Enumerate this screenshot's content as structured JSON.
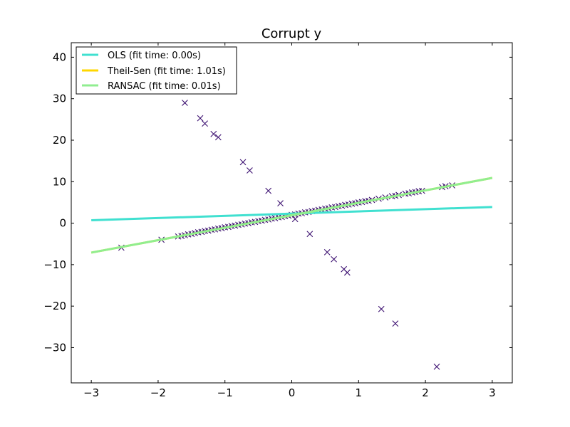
{
  "chart_data": {
    "type": "scatter",
    "title": "Corrupt y",
    "xlabel": "",
    "ylabel": "",
    "xlim": [
      -3.3,
      3.3
    ],
    "ylim": [
      -38.5,
      43.5
    ],
    "x_ticks": [
      -3,
      -2,
      -1,
      0,
      1,
      2,
      3
    ],
    "x_tick_labels": [
      "−3",
      "−2",
      "−1",
      "0",
      "1",
      "2",
      "3"
    ],
    "y_ticks": [
      -30,
      -20,
      -10,
      0,
      10,
      20,
      30,
      40
    ],
    "y_tick_labels": [
      "−30",
      "−20",
      "−10",
      "0",
      "10",
      "20",
      "30",
      "40"
    ],
    "grid": false,
    "legend": {
      "placement": "top-left"
    },
    "scatter": {
      "marker": "x",
      "color": "#3b0f70",
      "points": [
        [
          -2.55,
          -5.9
        ],
        [
          -1.95,
          -4.0
        ],
        [
          -1.7,
          -3.2
        ],
        [
          -1.65,
          -3.1
        ],
        [
          -1.6,
          -2.9
        ],
        [
          -1.55,
          -2.7
        ],
        [
          -1.5,
          -2.6
        ],
        [
          -1.45,
          -2.4
        ],
        [
          -1.4,
          -2.2
        ],
        [
          -1.35,
          -2.1
        ],
        [
          -1.3,
          -1.9
        ],
        [
          -1.25,
          -1.8
        ],
        [
          -1.2,
          -1.6
        ],
        [
          -1.15,
          -1.5
        ],
        [
          -1.1,
          -1.3
        ],
        [
          -1.05,
          -1.2
        ],
        [
          -1.0,
          -1.0
        ],
        [
          -0.95,
          -0.9
        ],
        [
          -0.9,
          -0.7
        ],
        [
          -0.85,
          -0.6
        ],
        [
          -0.8,
          -0.4
        ],
        [
          -0.75,
          -0.3
        ],
        [
          -0.7,
          -0.1
        ],
        [
          -0.65,
          0.0
        ],
        [
          -0.6,
          0.2
        ],
        [
          -0.55,
          0.3
        ],
        [
          -0.5,
          0.5
        ],
        [
          -0.45,
          0.6
        ],
        [
          -0.4,
          0.8
        ],
        [
          -0.35,
          0.9
        ],
        [
          -0.3,
          1.1
        ],
        [
          -0.25,
          1.2
        ],
        [
          -0.2,
          1.4
        ],
        [
          -0.15,
          1.5
        ],
        [
          -0.1,
          1.7
        ],
        [
          -0.05,
          1.8
        ],
        [
          0.0,
          2.0
        ],
        [
          0.05,
          2.1
        ],
        [
          0.1,
          2.3
        ],
        [
          0.15,
          2.4
        ],
        [
          0.2,
          2.6
        ],
        [
          0.25,
          2.7
        ],
        [
          0.3,
          2.9
        ],
        [
          0.35,
          3.0
        ],
        [
          0.4,
          3.2
        ],
        [
          0.45,
          3.3
        ],
        [
          0.5,
          3.5
        ],
        [
          0.55,
          3.6
        ],
        [
          0.6,
          3.8
        ],
        [
          0.65,
          3.9
        ],
        [
          0.7,
          4.1
        ],
        [
          0.75,
          4.2
        ],
        [
          0.8,
          4.4
        ],
        [
          0.85,
          4.5
        ],
        [
          0.9,
          4.7
        ],
        [
          0.95,
          4.8
        ],
        [
          1.0,
          5.0
        ],
        [
          1.05,
          5.1
        ],
        [
          1.1,
          5.3
        ],
        [
          1.15,
          5.4
        ],
        [
          1.2,
          5.6
        ],
        [
          1.3,
          5.9
        ],
        [
          1.4,
          6.2
        ],
        [
          1.5,
          6.5
        ],
        [
          1.55,
          6.6
        ],
        [
          1.6,
          6.8
        ],
        [
          1.7,
          7.1
        ],
        [
          1.75,
          7.2
        ],
        [
          1.8,
          7.4
        ],
        [
          1.85,
          7.5
        ],
        [
          1.9,
          7.7
        ],
        [
          1.95,
          7.8
        ],
        [
          2.25,
          8.7
        ],
        [
          2.3,
          8.9
        ],
        [
          2.4,
          9.1
        ],
        [
          -1.6,
          29.0
        ],
        [
          -1.37,
          25.3
        ],
        [
          -1.3,
          24.0
        ],
        [
          -1.17,
          21.5
        ],
        [
          -1.1,
          20.7
        ],
        [
          -0.73,
          14.7
        ],
        [
          -0.63,
          12.7
        ],
        [
          -0.35,
          7.8
        ],
        [
          -0.17,
          4.8
        ],
        [
          0.05,
          1.0
        ],
        [
          0.27,
          -2.6
        ],
        [
          0.53,
          -7.0
        ],
        [
          0.63,
          -8.7
        ],
        [
          0.78,
          -11.1
        ],
        [
          0.83,
          -11.9
        ],
        [
          1.34,
          -20.7
        ],
        [
          1.55,
          -24.2
        ],
        [
          2.17,
          -34.6
        ]
      ]
    },
    "series": [
      {
        "name": "OLS (fit time: 0.00s)",
        "color": "#40e0d0",
        "x": [
          -3,
          3
        ],
        "y": [
          0.7,
          3.9
        ]
      },
      {
        "name": "Theil-Sen (fit time: 1.01s)",
        "color": "#ffd700",
        "x": [
          -3,
          3
        ],
        "y": [
          -7.1,
          10.9
        ]
      },
      {
        "name": "RANSAC (fit time: 0.01s)",
        "color": "#90ee90",
        "x": [
          -3,
          3
        ],
        "y": [
          -7.1,
          10.9
        ]
      }
    ]
  }
}
